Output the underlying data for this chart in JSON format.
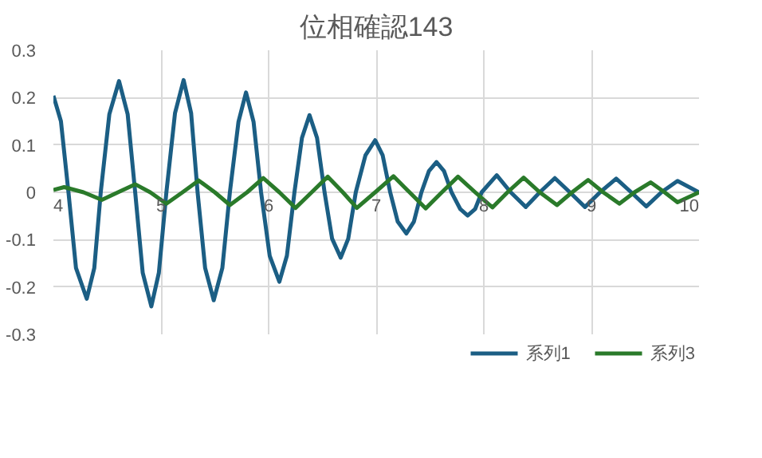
{
  "chart_data": {
    "type": "line",
    "title": "位相確認143",
    "xlim": [
      4,
      10
    ],
    "xticks": [
      4,
      5,
      6,
      7,
      8,
      9,
      10
    ],
    "ylim": [
      -0.3,
      0.3
    ],
    "yticks": [
      {
        "value": -0.3,
        "label": "-0.3"
      },
      {
        "value": -0.2,
        "label": "-0.2"
      },
      {
        "value": -0.1,
        "label": "-0.1"
      },
      0,
      {
        "value": 0.1,
        "label": "0.1"
      },
      {
        "value": 0.2,
        "label": "0.2"
      },
      {
        "value": 0.3,
        "label": "0.3"
      }
    ],
    "grid": true,
    "legend": "bottom",
    "marker": "none",
    "line_style": "solid",
    "series": [
      {
        "name": "系列1",
        "color": "#1b5e84",
        "x": [
          4.0,
          4.07,
          4.14,
          4.21,
          4.31,
          4.38,
          4.44,
          4.52,
          4.61,
          4.69,
          4.76,
          4.83,
          4.91,
          4.98,
          5.05,
          5.13,
          5.21,
          5.28,
          5.34,
          5.41,
          5.49,
          5.57,
          5.64,
          5.72,
          5.79,
          5.86,
          5.93,
          6.01,
          6.1,
          6.17,
          6.24,
          6.31,
          6.38,
          6.45,
          6.52,
          6.59,
          6.67,
          6.74,
          6.81,
          6.9,
          6.99,
          7.06,
          7.13,
          7.2,
          7.28,
          7.35,
          7.42,
          7.49,
          7.56,
          7.63,
          7.7,
          7.78,
          7.85,
          7.92,
          7.98,
          8.12,
          8.25,
          8.39,
          8.52,
          8.66,
          8.8,
          8.94,
          9.08,
          9.23,
          9.37,
          9.51,
          9.65,
          9.8,
          10.0
        ],
        "values": [
          0.204,
          0.15,
          0,
          -0.16,
          -0.225,
          -0.16,
          0,
          0.165,
          0.235,
          0.165,
          0,
          -0.17,
          -0.241,
          -0.17,
          0,
          0.167,
          0.237,
          0.167,
          0,
          -0.16,
          -0.228,
          -0.16,
          0,
          0.149,
          0.211,
          0.149,
          0,
          -0.134,
          -0.189,
          -0.134,
          0,
          0.115,
          0.163,
          0.115,
          0,
          -0.098,
          -0.138,
          -0.098,
          0,
          0.078,
          0.11,
          0.078,
          0,
          -0.062,
          -0.087,
          -0.062,
          0,
          0.045,
          0.064,
          0.045,
          0,
          -0.035,
          -0.049,
          -0.035,
          0,
          0.036,
          0,
          -0.031,
          0,
          0.03,
          0,
          -0.031,
          0,
          0.029,
          0,
          -0.03,
          0,
          0.024,
          0
        ]
      },
      {
        "name": "系列3",
        "color": "#2a7a2a",
        "x": [
          4.0,
          4.1,
          4.28,
          4.45,
          4.6,
          4.76,
          4.9,
          5.05,
          5.2,
          5.35,
          5.5,
          5.64,
          5.8,
          5.95,
          6.1,
          6.25,
          6.4,
          6.55,
          6.69,
          6.82,
          6.99,
          7.16,
          7.31,
          7.46,
          7.61,
          7.76,
          7.92,
          8.08,
          8.22,
          8.37,
          8.52,
          8.68,
          8.82,
          8.97,
          9.11,
          9.26,
          9.4,
          9.55,
          9.68,
          9.8,
          10.0
        ],
        "values": [
          0.005,
          0.011,
          0,
          -0.016,
          0,
          0.017,
          0,
          -0.024,
          0,
          0.025,
          0,
          -0.027,
          0,
          0.03,
          0,
          -0.033,
          0,
          0.033,
          0,
          -0.033,
          0,
          0.034,
          0,
          -0.034,
          0,
          0.033,
          0,
          -0.032,
          0,
          0.031,
          0,
          -0.027,
          0,
          0.026,
          0,
          -0.024,
          0,
          0.021,
          0,
          -0.021,
          0
        ]
      }
    ]
  }
}
